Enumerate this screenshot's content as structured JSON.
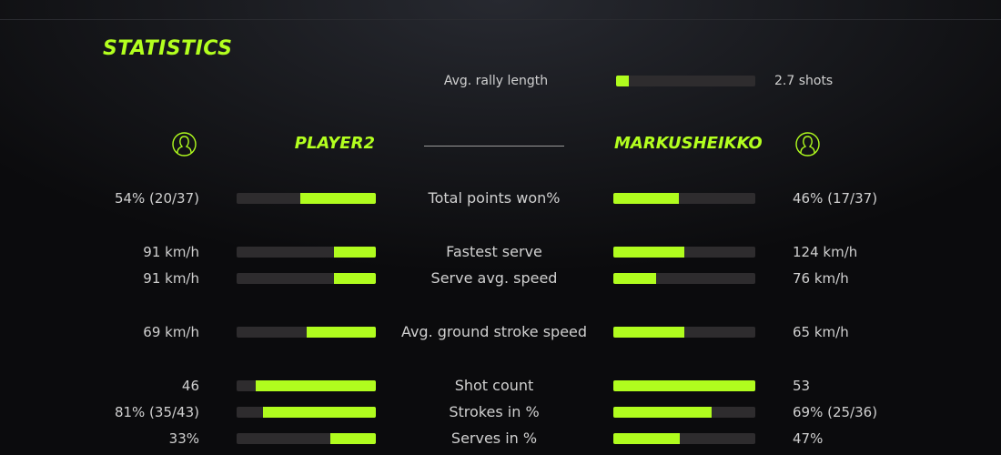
{
  "title": "STATISTICS",
  "accent": "#b0fc1e",
  "rally": {
    "label": "Avg. rally length",
    "value": "2.7 shots",
    "fill": 0.09
  },
  "players": {
    "left": {
      "name": "PLAYER2",
      "icon": "user-circle-icon"
    },
    "right": {
      "name": "MARKUSHEIKKO",
      "icon": "user-circle-icon"
    }
  },
  "stats": [
    {
      "label": "Total points won%",
      "left": "54% (20/37)",
      "right": "46% (17/37)",
      "left_fill": 0.54,
      "right_fill": 0.46
    },
    {
      "label": "Fastest serve",
      "left": "91 km/h",
      "right": "124 km/h",
      "left_fill": 0.3,
      "right_fill": 0.5
    },
    {
      "label": "Serve avg. speed",
      "left": "91 km/h",
      "right": "76 km/h",
      "left_fill": 0.3,
      "right_fill": 0.3
    },
    {
      "label": "Avg. ground stroke speed",
      "left": "69 km/h",
      "right": "65 km/h",
      "left_fill": 0.5,
      "right_fill": 0.5
    },
    {
      "label": "Shot count",
      "left": "46",
      "right": "53",
      "left_fill": 0.86,
      "right_fill": 1.0
    },
    {
      "label": "Strokes in %",
      "left": "81% (35/43)",
      "right": "69% (25/36)",
      "left_fill": 0.81,
      "right_fill": 0.69
    },
    {
      "label": "Serves in %",
      "left": "33%",
      "right": "47%",
      "left_fill": 0.33,
      "right_fill": 0.47
    }
  ]
}
